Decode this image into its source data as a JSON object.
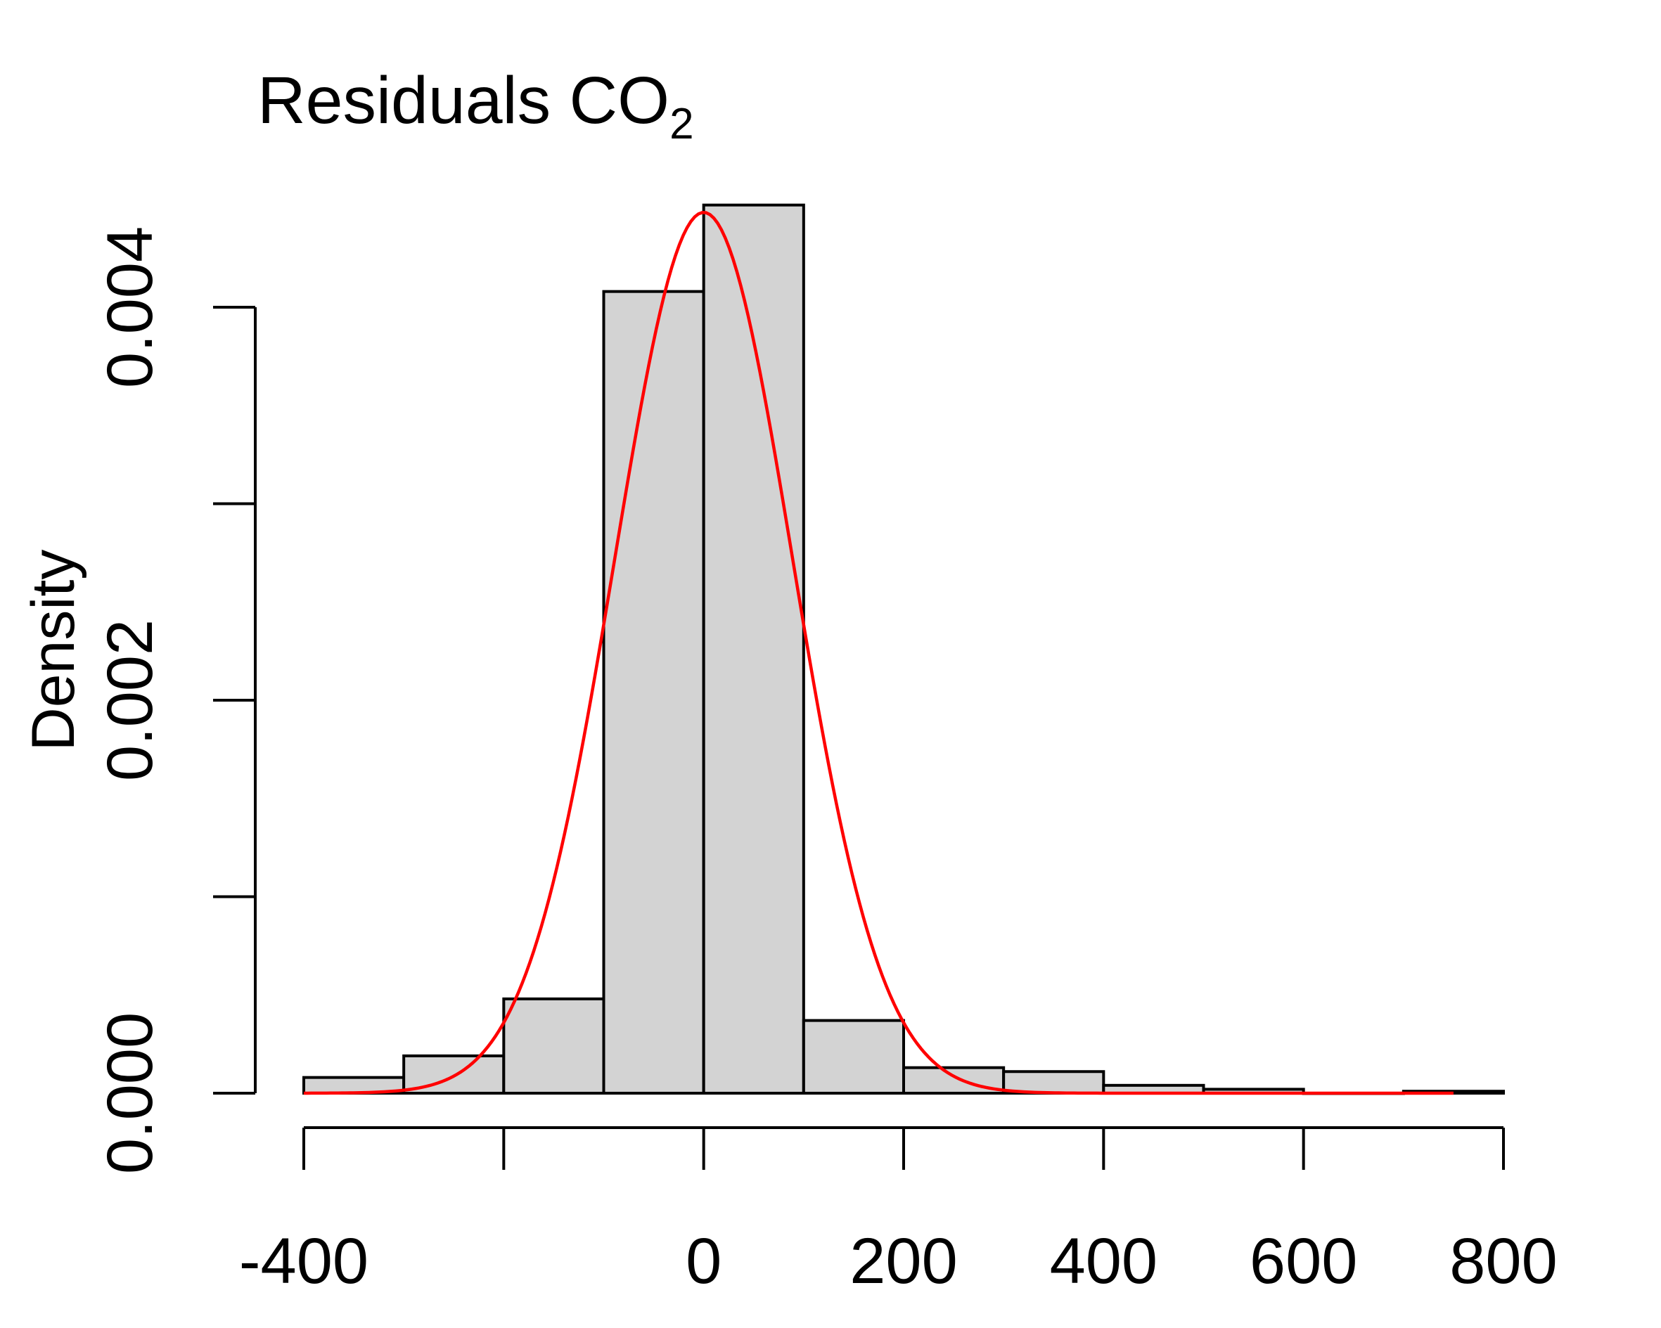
{
  "chart_data": {
    "type": "bar",
    "subtype": "histogram",
    "title": "Residuals CO",
    "title_subscript": "2",
    "xlabel": "",
    "ylabel": "Density",
    "x_ticks": [
      -400,
      -200,
      0,
      200,
      400,
      600,
      800
    ],
    "x_tick_labels": [
      "-400",
      "",
      "0",
      "200",
      "400",
      "600",
      "800"
    ],
    "y_ticks": [
      0,
      0.001,
      0.002,
      0.003,
      0.004
    ],
    "y_tick_labels": [
      "0.000",
      "",
      "0.002",
      "",
      "0.004"
    ],
    "xlim": [
      -400,
      800
    ],
    "ylim": [
      0,
      0.0045
    ],
    "bins": [
      {
        "from": -400,
        "to": -300,
        "density": 8e-05
      },
      {
        "from": -300,
        "to": -200,
        "density": 0.00019
      },
      {
        "from": -200,
        "to": -100,
        "density": 0.00048
      },
      {
        "from": -100,
        "to": 0,
        "density": 0.00408
      },
      {
        "from": 0,
        "to": 100,
        "density": 0.00452
      },
      {
        "from": 100,
        "to": 200,
        "density": 0.00037
      },
      {
        "from": 200,
        "to": 300,
        "density": 0.00013
      },
      {
        "from": 300,
        "to": 400,
        "density": 0.00011
      },
      {
        "from": 400,
        "to": 500,
        "density": 4e-05
      },
      {
        "from": 500,
        "to": 600,
        "density": 2e-05
      },
      {
        "from": 600,
        "to": 700,
        "density": 0.0
      },
      {
        "from": 700,
        "to": 800,
        "density": 1e-05
      }
    ],
    "curve": {
      "type": "normal-density",
      "mean": 0,
      "sd": 89,
      "x_from": -400,
      "x_to": 750
    },
    "colors": {
      "bar_fill": "#d3d3d3",
      "bar_stroke": "#000000",
      "curve": "#ff0000",
      "axis": "#000000"
    },
    "grid": false,
    "legend": "none"
  }
}
